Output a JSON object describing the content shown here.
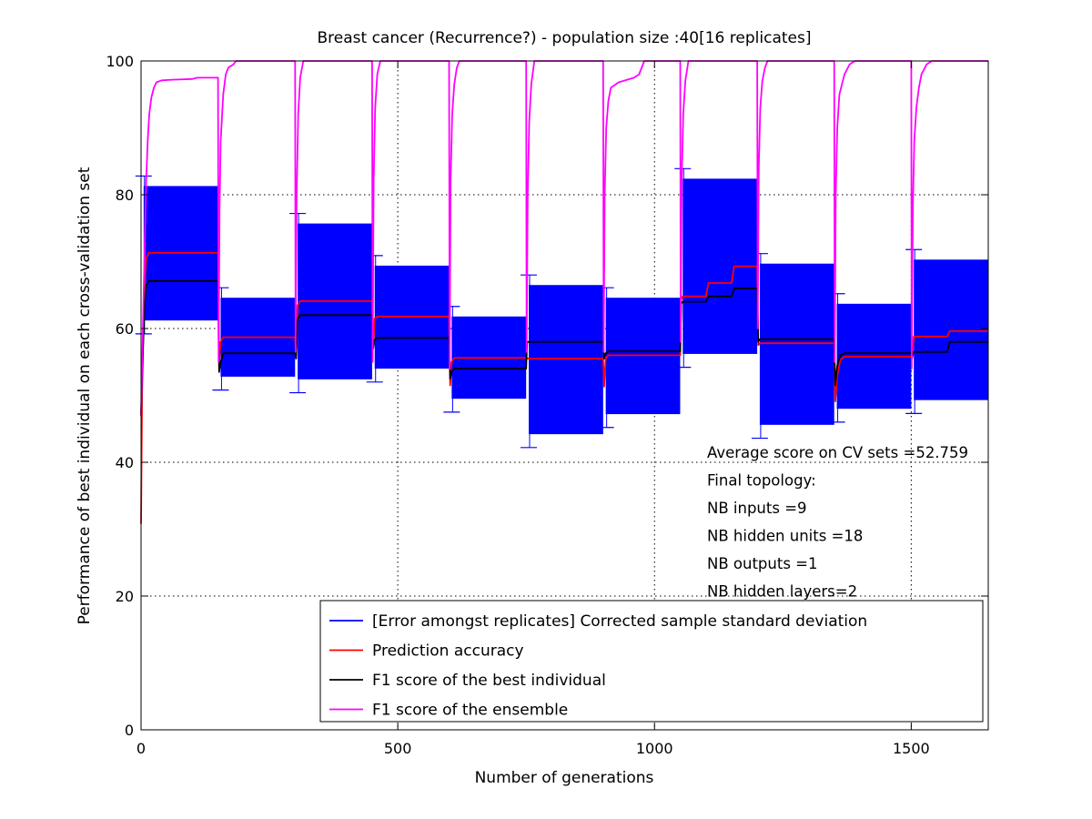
{
  "chart_data": {
    "type": "line",
    "title": "Breast cancer (Recurrence?) - population size :40[16 replicates]",
    "xlabel": "Number of generations",
    "ylabel": "Performance of best individual on each cross-validation set",
    "xlim": [
      0,
      1650
    ],
    "ylim": [
      0,
      100
    ],
    "xticks": [
      0,
      500,
      1000,
      1500
    ],
    "yticks": [
      0,
      20,
      40,
      60,
      80,
      100
    ],
    "grid": true,
    "legend_position": "bottom-right",
    "legend": [
      {
        "label": "[Error amongst replicates] Corrected sample standard deviation",
        "color": "#0000ff"
      },
      {
        "label": "Prediction accuracy",
        "color": "#ff0000"
      },
      {
        "label": "F1 score of the best individual",
        "color": "#000000"
      },
      {
        "label": "F1 score of the ensemble",
        "color": "#ff00ff"
      }
    ],
    "annotations": [
      "Average score on CV sets =52.759",
      "Final topology:",
      "NB inputs           =9",
      "NB hidden units  =18",
      "NB outputs          =1",
      "NB hidden layers=2"
    ],
    "series": [
      {
        "name": "[Error amongst replicates] Corrected sample standard deviation",
        "kind": "errorband",
        "color": "#0000ff",
        "segments": [
          {
            "x0": 5,
            "x1": 150,
            "low": 61.2,
            "high": 81.3
          },
          {
            "x0": 155,
            "x1": 300,
            "low": 52.8,
            "high": 64.6
          },
          {
            "x0": 305,
            "x1": 450,
            "low": 52.4,
            "high": 75.7
          },
          {
            "x0": 455,
            "x1": 600,
            "low": 54.0,
            "high": 69.4
          },
          {
            "x0": 605,
            "x1": 750,
            "low": 49.5,
            "high": 61.8
          },
          {
            "x0": 755,
            "x1": 900,
            "low": 44.2,
            "high": 66.5
          },
          {
            "x0": 905,
            "x1": 1050,
            "low": 47.2,
            "high": 64.6
          },
          {
            "x0": 1055,
            "x1": 1200,
            "low": 56.2,
            "high": 82.4
          },
          {
            "x0": 1205,
            "x1": 1350,
            "low": 45.6,
            "high": 69.7
          },
          {
            "x0": 1355,
            "x1": 1500,
            "low": 48.0,
            "high": 63.7
          },
          {
            "x0": 1505,
            "x1": 1650,
            "low": 49.3,
            "high": 70.3
          }
        ]
      },
      {
        "name": "Prediction accuracy",
        "color": "#ff0000",
        "points": [
          [
            0,
            30.8
          ],
          [
            2,
            50
          ],
          [
            5,
            62
          ],
          [
            8,
            68
          ],
          [
            10,
            70.5
          ],
          [
            15,
            71.3
          ],
          [
            150,
            71.3
          ],
          [
            152,
            55
          ],
          [
            155,
            58
          ],
          [
            160,
            58.7
          ],
          [
            300,
            58.7
          ],
          [
            302,
            56
          ],
          [
            305,
            63.5
          ],
          [
            310,
            64.1
          ],
          [
            450,
            64.1
          ],
          [
            452,
            57
          ],
          [
            455,
            61.5
          ],
          [
            460,
            61.8
          ],
          [
            600,
            61.8
          ],
          [
            602,
            51.5
          ],
          [
            605,
            55
          ],
          [
            610,
            55.6
          ],
          [
            750,
            55.6
          ],
          [
            755,
            55.5
          ],
          [
            900,
            55.5
          ],
          [
            902,
            51.3
          ],
          [
            905,
            55.5
          ],
          [
            910,
            56.0
          ],
          [
            1050,
            56.0
          ],
          [
            1052,
            64.3
          ],
          [
            1055,
            64.8
          ],
          [
            1100,
            64.8
          ],
          [
            1105,
            66.8
          ],
          [
            1150,
            66.8
          ],
          [
            1155,
            69.3
          ],
          [
            1200,
            69.3
          ],
          [
            1202,
            57.5
          ],
          [
            1205,
            57.8
          ],
          [
            1350,
            57.8
          ],
          [
            1352,
            49.1
          ],
          [
            1356,
            53
          ],
          [
            1362,
            55.3
          ],
          [
            1370,
            55.8
          ],
          [
            1500,
            55.8
          ],
          [
            1502,
            55.5
          ],
          [
            1505,
            58.8
          ],
          [
            1570,
            58.8
          ],
          [
            1575,
            59.6
          ],
          [
            1650,
            59.6
          ]
        ]
      },
      {
        "name": "F1 score of the best individual",
        "color": "#000000",
        "points": [
          [
            0,
            47
          ],
          [
            3,
            55
          ],
          [
            6,
            62
          ],
          [
            10,
            66.5
          ],
          [
            15,
            67.1
          ],
          [
            150,
            67.1
          ],
          [
            152,
            53.5
          ],
          [
            155,
            55
          ],
          [
            160,
            56.3
          ],
          [
            300,
            56.3
          ],
          [
            302,
            55.5
          ],
          [
            305,
            61.5
          ],
          [
            310,
            62.0
          ],
          [
            450,
            62.0
          ],
          [
            452,
            57
          ],
          [
            455,
            58.3
          ],
          [
            460,
            58.6
          ],
          [
            600,
            58.6
          ],
          [
            602,
            52.5
          ],
          [
            605,
            53.6
          ],
          [
            610,
            54.0
          ],
          [
            750,
            54.0
          ],
          [
            752,
            58.0
          ],
          [
            900,
            58.0
          ],
          [
            902,
            55.5
          ],
          [
            905,
            56.3
          ],
          [
            910,
            56.6
          ],
          [
            1050,
            56.6
          ],
          [
            1052,
            63.7
          ],
          [
            1055,
            64.0
          ],
          [
            1100,
            64.0
          ],
          [
            1105,
            64.8
          ],
          [
            1150,
            64.8
          ],
          [
            1155,
            66.0
          ],
          [
            1200,
            66.0
          ],
          [
            1202,
            58.0
          ],
          [
            1205,
            58.4
          ],
          [
            1350,
            58.4
          ],
          [
            1352,
            51.5
          ],
          [
            1356,
            54.5
          ],
          [
            1362,
            56.0
          ],
          [
            1370,
            56.3
          ],
          [
            1500,
            56.3
          ],
          [
            1502,
            55.8
          ],
          [
            1505,
            56.5
          ],
          [
            1570,
            56.5
          ],
          [
            1575,
            58.0
          ],
          [
            1650,
            58.0
          ]
        ]
      },
      {
        "name": "F1 score of the ensemble",
        "color": "#ff00ff",
        "points": [
          [
            0,
            47
          ],
          [
            3,
            58
          ],
          [
            5,
            65
          ],
          [
            8,
            75
          ],
          [
            10,
            82
          ],
          [
            13,
            88
          ],
          [
            16,
            92
          ],
          [
            20,
            94.5
          ],
          [
            25,
            96
          ],
          [
            30,
            96.8
          ],
          [
            40,
            97.1
          ],
          [
            60,
            97.2
          ],
          [
            100,
            97.3
          ],
          [
            110,
            97.5
          ],
          [
            150,
            97.5
          ],
          [
            151,
            55
          ],
          [
            153,
            78
          ],
          [
            155,
            88
          ],
          [
            160,
            95
          ],
          [
            165,
            98
          ],
          [
            170,
            99
          ],
          [
            180,
            99.5
          ],
          [
            185,
            100
          ],
          [
            300,
            100
          ],
          [
            301,
            56.5
          ],
          [
            303,
            80
          ],
          [
            306,
            92
          ],
          [
            310,
            97.5
          ],
          [
            316,
            100
          ],
          [
            450,
            100
          ],
          [
            451,
            55
          ],
          [
            453,
            82
          ],
          [
            456,
            93
          ],
          [
            460,
            98
          ],
          [
            466,
            100
          ],
          [
            600,
            100
          ],
          [
            601,
            54
          ],
          [
            603,
            82
          ],
          [
            606,
            92
          ],
          [
            610,
            96.5
          ],
          [
            615,
            99
          ],
          [
            620,
            100
          ],
          [
            750,
            100
          ],
          [
            751,
            56.5
          ],
          [
            753,
            80
          ],
          [
            756,
            91
          ],
          [
            760,
            96.5
          ],
          [
            766,
            100
          ],
          [
            900,
            100
          ],
          [
            901,
            56.5
          ],
          [
            903,
            80
          ],
          [
            906,
            90
          ],
          [
            910,
            94
          ],
          [
            915,
            96
          ],
          [
            930,
            96.8
          ],
          [
            960,
            97.5
          ],
          [
            970,
            98
          ],
          [
            980,
            100
          ],
          [
            1050,
            100
          ],
          [
            1051,
            58
          ],
          [
            1053,
            82
          ],
          [
            1056,
            92
          ],
          [
            1060,
            97
          ],
          [
            1066,
            100
          ],
          [
            1200,
            100
          ],
          [
            1201,
            60
          ],
          [
            1203,
            84
          ],
          [
            1206,
            93
          ],
          [
            1210,
            97
          ],
          [
            1215,
            99
          ],
          [
            1220,
            100
          ],
          [
            1350,
            100
          ],
          [
            1351,
            55
          ],
          [
            1353,
            80
          ],
          [
            1356,
            90
          ],
          [
            1360,
            95
          ],
          [
            1370,
            98
          ],
          [
            1380,
            99.5
          ],
          [
            1390,
            100
          ],
          [
            1500,
            100
          ],
          [
            1501,
            54
          ],
          [
            1503,
            78
          ],
          [
            1506,
            88
          ],
          [
            1510,
            93
          ],
          [
            1515,
            96
          ],
          [
            1520,
            98
          ],
          [
            1530,
            99.5
          ],
          [
            1540,
            100
          ],
          [
            1650,
            100
          ]
        ]
      }
    ]
  }
}
